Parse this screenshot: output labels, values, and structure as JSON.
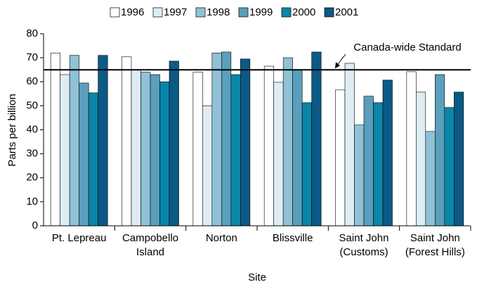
{
  "chart_data": {
    "type": "bar",
    "categories": [
      [
        "Pt. Lepreau"
      ],
      [
        "Campobello",
        "Island"
      ],
      [
        "Norton"
      ],
      [
        "Blissville"
      ],
      [
        "Saint John",
        "(Customs)"
      ],
      [
        "Saint John",
        "(Forest Hills)"
      ]
    ],
    "series": [
      {
        "name": "1996",
        "color": "#ffffff",
        "values": [
          72,
          70.4,
          64,
          66.5,
          56.6,
          64.2
        ]
      },
      {
        "name": "1997",
        "color": "#deedf3",
        "values": [
          63,
          65,
          50,
          59.8,
          67.7,
          55.7
        ]
      },
      {
        "name": "1998",
        "color": "#8fc2d6",
        "values": [
          71,
          64,
          72,
          70,
          42,
          39.3
        ]
      },
      {
        "name": "1999",
        "color": "#5a9fbb",
        "values": [
          59.5,
          63,
          72.4,
          65,
          54,
          63
        ]
      },
      {
        "name": "2000",
        "color": "#0a86a8",
        "values": [
          55.4,
          60,
          63,
          51.3,
          51.3,
          49.3
        ]
      },
      {
        "name": "2001",
        "color": "#0b5a85",
        "values": [
          71,
          68.6,
          69.5,
          72.4,
          60.7,
          55.7
        ]
      }
    ],
    "ylim": [
      0,
      80
    ],
    "yticks": [
      0,
      10,
      20,
      30,
      40,
      50,
      60,
      70,
      80
    ],
    "ylabel": "Parts per billion",
    "xlabel": "Site",
    "reference_line": {
      "value": 65,
      "label": "Canada-wide Standard"
    },
    "legend": "top"
  }
}
